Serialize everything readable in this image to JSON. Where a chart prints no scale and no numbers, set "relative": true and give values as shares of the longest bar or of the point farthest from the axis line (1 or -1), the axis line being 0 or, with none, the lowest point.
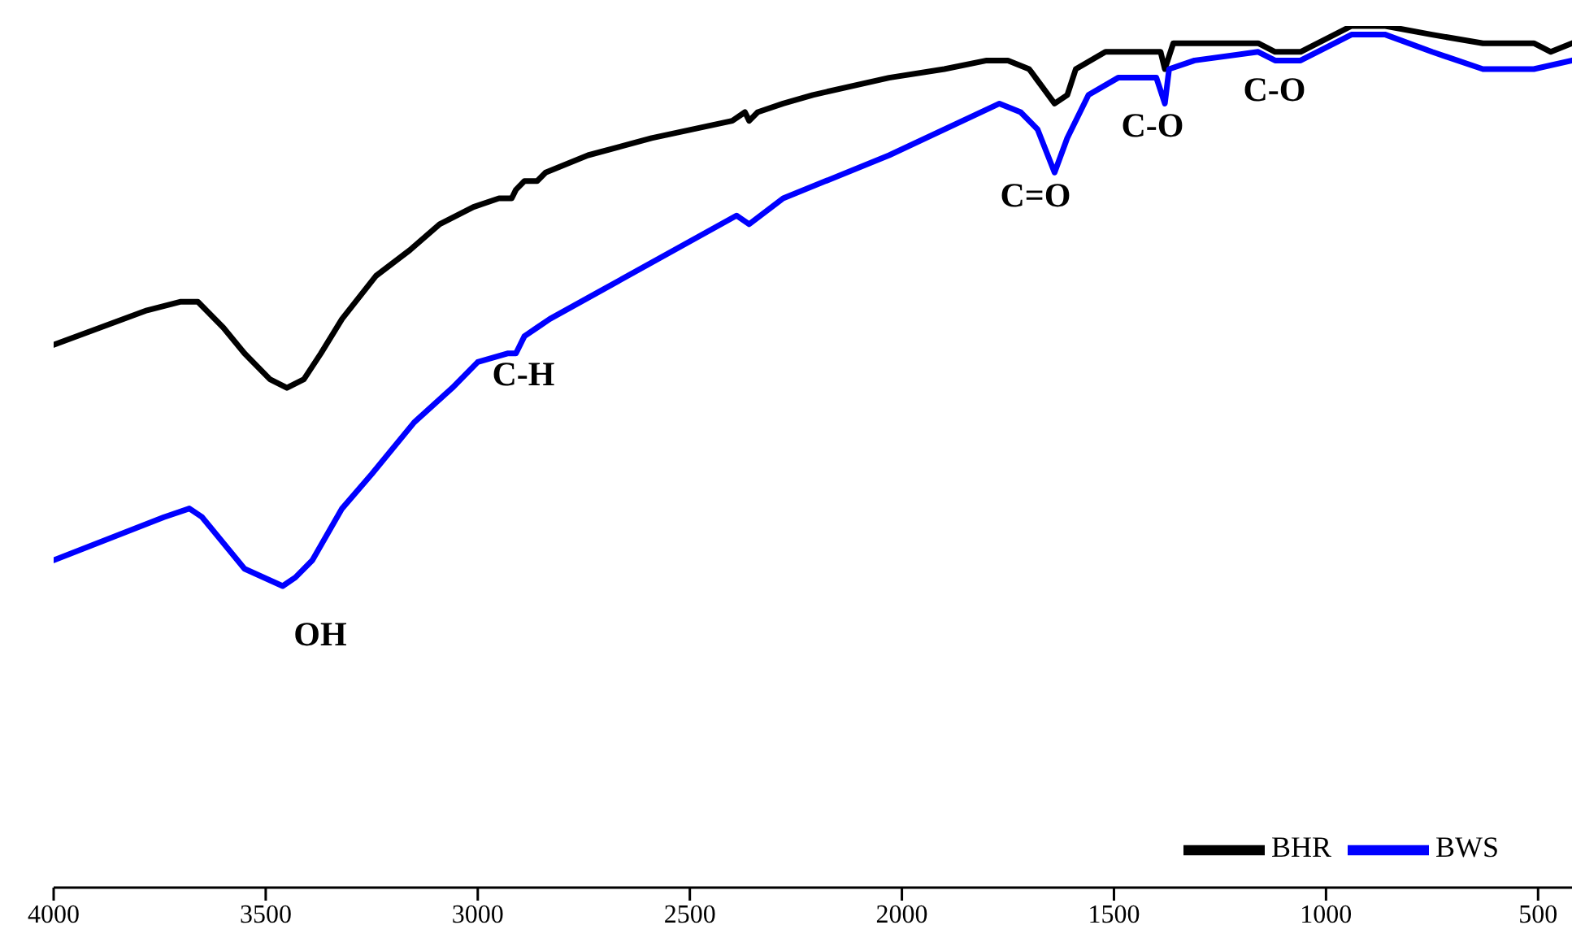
{
  "chart_data": {
    "type": "line",
    "relative": true,
    "xlim": [
      4000,
      420
    ],
    "xticks": [
      4000,
      3500,
      3000,
      2500,
      2000,
      1500,
      1000,
      500
    ],
    "grid": false,
    "legend": "bottom right",
    "marker": "none",
    "line_style": "solid",
    "tick_labels": "x",
    "series": [
      {
        "name": "BHR",
        "color": "#000000",
        "x": [
          4000,
          3890,
          3780,
          3700,
          3660,
          3600,
          3550,
          3490,
          3450,
          3410,
          3370,
          3320,
          3240,
          3160,
          3090,
          3010,
          2950,
          2920,
          2910,
          2890,
          2860,
          2840,
          2740,
          2590,
          2400,
          2370,
          2360,
          2340,
          2280,
          2210,
          2030,
          1900,
          1800,
          1750,
          1700,
          1670,
          1640,
          1610,
          1590,
          1520,
          1390,
          1380,
          1360,
          1300,
          1160,
          1120,
          1060,
          940,
          860,
          750,
          630,
          510,
          470,
          420
        ],
        "values": [
          0.63,
          0.65,
          0.67,
          0.68,
          0.68,
          0.65,
          0.62,
          0.59,
          0.58,
          0.59,
          0.62,
          0.66,
          0.71,
          0.74,
          0.77,
          0.79,
          0.8,
          0.8,
          0.81,
          0.82,
          0.82,
          0.83,
          0.85,
          0.87,
          0.89,
          0.9,
          0.89,
          0.9,
          0.91,
          0.92,
          0.94,
          0.95,
          0.96,
          0.96,
          0.95,
          0.93,
          0.91,
          0.92,
          0.95,
          0.97,
          0.97,
          0.95,
          0.98,
          0.98,
          0.98,
          0.97,
          0.97,
          1.0,
          1.0,
          0.99,
          0.98,
          0.98,
          0.97,
          0.98
        ]
      },
      {
        "name": "BWS",
        "color": "#0000ff",
        "x": [
          4000,
          3740,
          3680,
          3650,
          3550,
          3460,
          3430,
          3390,
          3320,
          3250,
          3150,
          3060,
          3000,
          2930,
          2910,
          2890,
          2860,
          2830,
          2720,
          2390,
          2360,
          2280,
          2030,
          1770,
          1720,
          1680,
          1640,
          1610,
          1560,
          1490,
          1400,
          1380,
          1370,
          1310,
          1160,
          1120,
          1060,
          940,
          860,
          750,
          630,
          510,
          420
        ],
        "values": [
          0.38,
          0.43,
          0.44,
          0.43,
          0.37,
          0.35,
          0.36,
          0.38,
          0.44,
          0.48,
          0.54,
          0.58,
          0.61,
          0.62,
          0.62,
          0.64,
          0.65,
          0.66,
          0.69,
          0.78,
          0.77,
          0.8,
          0.85,
          0.91,
          0.9,
          0.88,
          0.83,
          0.87,
          0.92,
          0.94,
          0.94,
          0.91,
          0.95,
          0.96,
          0.97,
          0.96,
          0.96,
          0.99,
          0.99,
          0.97,
          0.95,
          0.95,
          0.96
        ]
      }
    ],
    "annotations": [
      "OH",
      "C-H",
      "C=O",
      "C-O",
      "C-O"
    ]
  }
}
